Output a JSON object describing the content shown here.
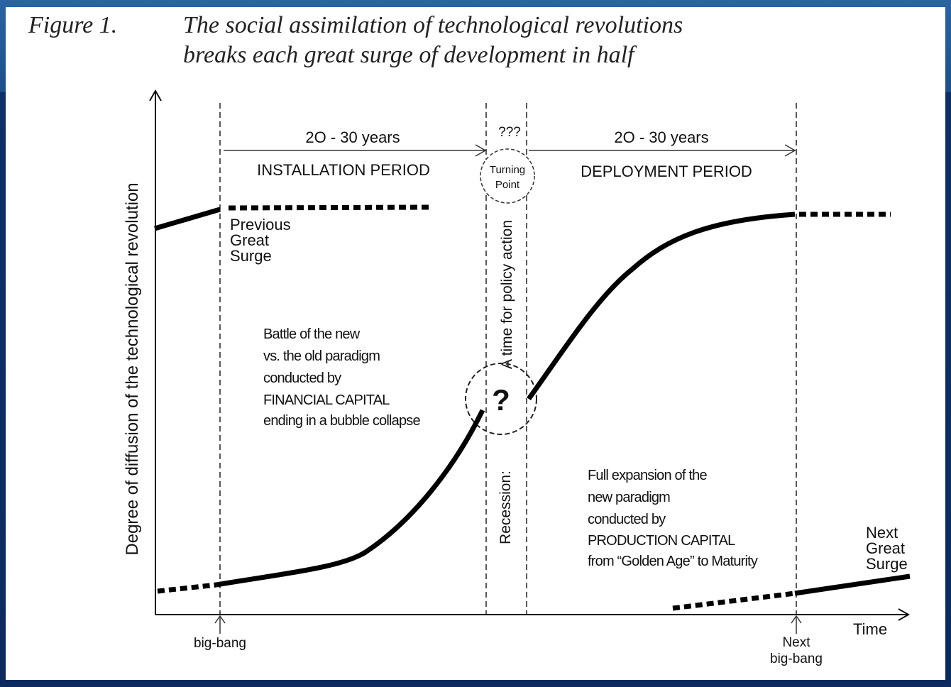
{
  "figure_label": "Figure 1.",
  "title_line1": "The social assimilation of technological revolutions",
  "title_line2": "breaks each great surge of development in half",
  "y_axis_label": "Degree of diffusion of the technological revolution",
  "x_axis_label": "Time",
  "installation": {
    "duration": "2O - 30 years",
    "label": "INSTALLATION PERIOD"
  },
  "deployment": {
    "duration": "2O - 30 years",
    "label": "DEPLOYMENT PERIOD"
  },
  "turning_point": {
    "question": "???",
    "line1": "Turning",
    "line2": "Point",
    "mark": "?"
  },
  "policy_text": "A time for policy action",
  "recession_text": "Recession:",
  "previous_surge": [
    "Previous",
    "Great",
    "Surge"
  ],
  "next_surge": [
    "Next",
    "Great",
    "Surge"
  ],
  "battle_text": [
    "Battle of the new",
    "vs. the old paradigm",
    "conducted by",
    "FINANCIAL CAPITAL",
    "ending in a bubble collapse"
  ],
  "expansion_text": [
    "Full expansion of the",
    "new paradigm",
    "conducted by",
    "PRODUCTION  CAPITAL",
    "from “Golden Age” to Maturity"
  ],
  "big_bang": "big-bang",
  "next_big_bang": [
    "Next",
    "big-bang"
  ]
}
